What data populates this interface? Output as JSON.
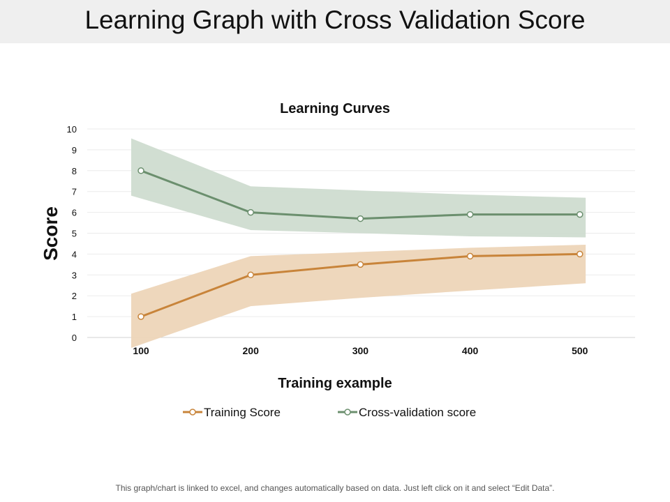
{
  "slide": {
    "title": "Learning Graph with Cross Validation Score",
    "footnote": "This graph/chart is linked to excel, and changes automatically based on data. Just left click on it and select “Edit Data”."
  },
  "chart_data": {
    "type": "line",
    "title": "Learning Curves",
    "xlabel": "Training example",
    "ylabel": "Score",
    "categories": [
      "100",
      "200",
      "300",
      "400",
      "500"
    ],
    "x": [
      100,
      200,
      300,
      400,
      500
    ],
    "ylim": [
      0,
      10
    ],
    "yticks": [
      "0",
      "1",
      "2",
      "3",
      "4",
      "5",
      "6",
      "7",
      "8",
      "9",
      "10"
    ],
    "grid": true,
    "legend": "bottom",
    "series": [
      {
        "name": "Training Score",
        "color": "#c8843a",
        "band_color": "#edd5b8",
        "values": [
          1.0,
          3.0,
          3.5,
          3.9,
          4.0
        ],
        "band_upper": [
          2.1,
          3.9,
          4.1,
          4.3,
          4.45
        ],
        "band_lower": [
          -0.5,
          1.5,
          1.9,
          2.25,
          2.6
        ]
      },
      {
        "name": "Cross-validation score",
        "color": "#6b8f6e",
        "band_color": "#cfdcd0",
        "values": [
          8.0,
          6.0,
          5.7,
          5.9,
          5.9
        ],
        "band_upper": [
          9.55,
          7.25,
          7.05,
          6.85,
          6.7
        ],
        "band_lower": [
          6.8,
          5.15,
          5.0,
          4.85,
          4.8
        ]
      }
    ]
  }
}
